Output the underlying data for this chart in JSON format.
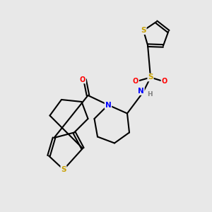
{
  "background_color": "#e8e8e8",
  "atom_colors": {
    "C": "#000000",
    "S": "#c8a000",
    "N": "#0000ff",
    "O": "#ff0000",
    "H": "#808080"
  },
  "bond_color": "#000000",
  "bond_width": 1.5,
  "figsize": [
    3.0,
    3.0
  ],
  "dpi": 100,
  "xlim": [
    0,
    10
  ],
  "ylim": [
    0,
    10
  ]
}
